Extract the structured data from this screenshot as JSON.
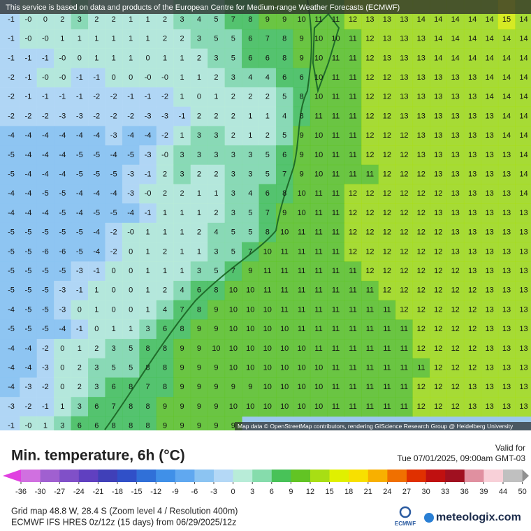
{
  "header": {
    "notice": "This service is based on data and products of the European Centre for Medium-range Weather Forecasts (ECMWF)"
  },
  "map": {
    "attribution": "Map data © OpenStreetMap contributors, rendering GIScience Research Group @ Heidelberg University",
    "grid": [
      [
        "-1",
        "-0",
        "0",
        "2",
        "3",
        "2",
        "2",
        "1",
        "1",
        "2",
        "3",
        "4",
        "5",
        "7",
        "8",
        "9",
        "9",
        "10",
        "11",
        "11",
        "12",
        "13",
        "13",
        "13",
        "14",
        "14",
        "14",
        "14",
        "14",
        "15",
        "14"
      ],
      [
        "-1",
        "-0",
        "-0",
        "1",
        "1",
        "1",
        "1",
        "1",
        "1",
        "2",
        "2",
        "3",
        "5",
        "5",
        "6",
        "7",
        "8",
        "9",
        "10",
        "10",
        "11",
        "12",
        "13",
        "13",
        "13",
        "14",
        "14",
        "14",
        "14",
        "14",
        "14"
      ],
      [
        "-1",
        "-1",
        "-1",
        "-0",
        "0",
        "1",
        "1",
        "1",
        "0",
        "1",
        "1",
        "2",
        "3",
        "5",
        "6",
        "6",
        "8",
        "9",
        "10",
        "11",
        "11",
        "12",
        "13",
        "13",
        "13",
        "14",
        "14",
        "14",
        "14",
        "14",
        "14"
      ],
      [
        "-2",
        "-1",
        "-0",
        "-0",
        "-1",
        "-1",
        "0",
        "0",
        "-0",
        "-0",
        "1",
        "1",
        "2",
        "3",
        "4",
        "4",
        "6",
        "6",
        "10",
        "11",
        "11",
        "12",
        "12",
        "13",
        "13",
        "13",
        "13",
        "13",
        "14",
        "14",
        "14"
      ],
      [
        "-2",
        "-1",
        "-1",
        "-1",
        "-1",
        "-2",
        "-2",
        "-1",
        "-1",
        "-2",
        "1",
        "0",
        "1",
        "2",
        "2",
        "2",
        "5",
        "8",
        "10",
        "11",
        "11",
        "12",
        "12",
        "13",
        "13",
        "13",
        "13",
        "13",
        "14",
        "14",
        "14"
      ],
      [
        "-2",
        "-2",
        "-2",
        "-3",
        "-3",
        "-2",
        "-2",
        "-2",
        "-3",
        "-3",
        "-1",
        "2",
        "2",
        "2",
        "1",
        "1",
        "4",
        "8",
        "11",
        "11",
        "11",
        "12",
        "12",
        "13",
        "13",
        "13",
        "13",
        "13",
        "13",
        "14",
        "14"
      ],
      [
        "-4",
        "-4",
        "-4",
        "-4",
        "-4",
        "-4",
        "-3",
        "-4",
        "-4",
        "-2",
        "1",
        "3",
        "3",
        "2",
        "1",
        "2",
        "5",
        "9",
        "10",
        "11",
        "11",
        "12",
        "12",
        "12",
        "13",
        "13",
        "13",
        "13",
        "13",
        "14",
        "14"
      ],
      [
        "-5",
        "-4",
        "-4",
        "-4",
        "-5",
        "-5",
        "-4",
        "-5",
        "-3",
        "-0",
        "3",
        "3",
        "3",
        "3",
        "3",
        "5",
        "6",
        "9",
        "10",
        "11",
        "11",
        "12",
        "12",
        "12",
        "13",
        "13",
        "13",
        "13",
        "13",
        "13",
        "14"
      ],
      [
        "-5",
        "-4",
        "-4",
        "-4",
        "-5",
        "-5",
        "-5",
        "-3",
        "-1",
        "2",
        "3",
        "2",
        "2",
        "3",
        "3",
        "5",
        "7",
        "9",
        "10",
        "11",
        "11",
        "11",
        "12",
        "12",
        "12",
        "13",
        "13",
        "13",
        "13",
        "13",
        "14"
      ],
      [
        "-4",
        "-4",
        "-5",
        "-5",
        "-4",
        "-4",
        "-4",
        "-3",
        "-0",
        "2",
        "2",
        "1",
        "1",
        "3",
        "4",
        "6",
        "8",
        "10",
        "11",
        "11",
        "12",
        "12",
        "12",
        "12",
        "12",
        "12",
        "13",
        "13",
        "13",
        "13",
        "14"
      ],
      [
        "-4",
        "-4",
        "-4",
        "-5",
        "-4",
        "-5",
        "-5",
        "-4",
        "-1",
        "1",
        "1",
        "1",
        "2",
        "3",
        "5",
        "7",
        "9",
        "10",
        "11",
        "11",
        "12",
        "12",
        "12",
        "12",
        "12",
        "13",
        "13",
        "13",
        "13",
        "13",
        "13"
      ],
      [
        "-5",
        "-5",
        "-5",
        "-5",
        "-5",
        "-4",
        "-2",
        "-0",
        "1",
        "1",
        "1",
        "2",
        "4",
        "5",
        "5",
        "8",
        "10",
        "11",
        "11",
        "11",
        "12",
        "12",
        "12",
        "12",
        "12",
        "12",
        "13",
        "13",
        "13",
        "13",
        "13"
      ],
      [
        "-5",
        "-5",
        "-6",
        "-6",
        "-5",
        "-4",
        "-2",
        "0",
        "1",
        "2",
        "1",
        "1",
        "3",
        "5",
        "7",
        "10",
        "11",
        "11",
        "11",
        "11",
        "12",
        "12",
        "12",
        "12",
        "12",
        "12",
        "13",
        "13",
        "13",
        "13",
        "13"
      ],
      [
        "-5",
        "-5",
        "-5",
        "-5",
        "-3",
        "-1",
        "0",
        "0",
        "1",
        "1",
        "1",
        "3",
        "5",
        "7",
        "9",
        "11",
        "11",
        "11",
        "11",
        "11",
        "11",
        "12",
        "12",
        "12",
        "12",
        "12",
        "12",
        "13",
        "13",
        "13",
        "13"
      ],
      [
        "-5",
        "-5",
        "-5",
        "-3",
        "-1",
        "1",
        "0",
        "0",
        "1",
        "2",
        "4",
        "6",
        "8",
        "10",
        "10",
        "11",
        "11",
        "11",
        "11",
        "11",
        "11",
        "11",
        "12",
        "12",
        "12",
        "12",
        "12",
        "12",
        "13",
        "13",
        "13"
      ],
      [
        "-4",
        "-5",
        "-5",
        "-3",
        "0",
        "1",
        "0",
        "0",
        "1",
        "4",
        "7",
        "8",
        "9",
        "10",
        "10",
        "10",
        "11",
        "11",
        "11",
        "11",
        "11",
        "11",
        "11",
        "12",
        "12",
        "12",
        "12",
        "12",
        "13",
        "13",
        "13"
      ],
      [
        "-5",
        "-5",
        "-5",
        "-4",
        "-1",
        "0",
        "1",
        "1",
        "3",
        "6",
        "8",
        "9",
        "9",
        "10",
        "10",
        "10",
        "10",
        "11",
        "11",
        "11",
        "11",
        "11",
        "11",
        "11",
        "12",
        "12",
        "12",
        "12",
        "13",
        "13",
        "13"
      ],
      [
        "-4",
        "-4",
        "-2",
        "0",
        "1",
        "2",
        "3",
        "5",
        "8",
        "8",
        "9",
        "9",
        "10",
        "10",
        "10",
        "10",
        "10",
        "10",
        "11",
        "11",
        "11",
        "11",
        "11",
        "11",
        "12",
        "12",
        "12",
        "12",
        "13",
        "13",
        "13"
      ],
      [
        "-4",
        "-4",
        "-3",
        "0",
        "2",
        "3",
        "5",
        "5",
        "8",
        "8",
        "9",
        "9",
        "9",
        "10",
        "10",
        "10",
        "10",
        "10",
        "10",
        "11",
        "11",
        "11",
        "11",
        "11",
        "11",
        "12",
        "12",
        "12",
        "13",
        "13",
        "13"
      ],
      [
        "-4",
        "-3",
        "-2",
        "0",
        "2",
        "3",
        "6",
        "8",
        "7",
        "8",
        "9",
        "9",
        "9",
        "9",
        "9",
        "10",
        "10",
        "10",
        "10",
        "11",
        "11",
        "11",
        "11",
        "11",
        "12",
        "12",
        "12",
        "13",
        "13",
        "13",
        "13"
      ],
      [
        "-3",
        "-2",
        "-1",
        "1",
        "3",
        "6",
        "7",
        "8",
        "8",
        "9",
        "9",
        "9",
        "9",
        "10",
        "10",
        "10",
        "10",
        "10",
        "10",
        "11",
        "11",
        "11",
        "11",
        "11",
        "12",
        "12",
        "12",
        "13",
        "13",
        "13",
        "13"
      ],
      [
        "-1",
        "-0",
        "1",
        "3",
        "6",
        "6",
        "8",
        "8",
        "8",
        "9",
        "9",
        "9",
        "9",
        "9"
      ]
    ]
  },
  "legend": {
    "title": "Min. temperature, 6h (°C)",
    "ticks": [
      "-36",
      "-30",
      "-27",
      "-24",
      "-21",
      "-18",
      "-15",
      "-12",
      "-9",
      "-6",
      "-3",
      "0",
      "3",
      "6",
      "9",
      "12",
      "15",
      "18",
      "21",
      "24",
      "27",
      "30",
      "33",
      "36",
      "39",
      "44",
      "50"
    ],
    "colors": [
      "#d070e0",
      "#a060d0",
      "#8050c8",
      "#6040c0",
      "#4040b8",
      "#3050c8",
      "#3070d8",
      "#4090e8",
      "#60a8f0",
      "#8cc4f2",
      "#b4d8f6",
      "#b8ecd8",
      "#86dcac",
      "#48c258",
      "#62c424",
      "#a8de14",
      "#e0f000",
      "#f8e000",
      "#f8b000",
      "#f07000",
      "#e03000",
      "#c01010",
      "#a01020",
      "#e090a0",
      "#f8d0d8",
      "#c0c0c0"
    ],
    "under_color": "#e040e0",
    "over_color": "#909090"
  },
  "valid": {
    "label": "Valid for",
    "time": "Tue 07/01/2025, 09:00am GMT-03"
  },
  "footer": {
    "grid_info": "Grid map 48.8 W, 28.4 S (Zoom level 4 / Resolution 400m)",
    "model_info": "ECMWF IFS HRES 0z/12z (15 days) from  06/29/2025/12z",
    "ecmwf_logo": "ECMWF",
    "brand": "meteologix.com"
  }
}
